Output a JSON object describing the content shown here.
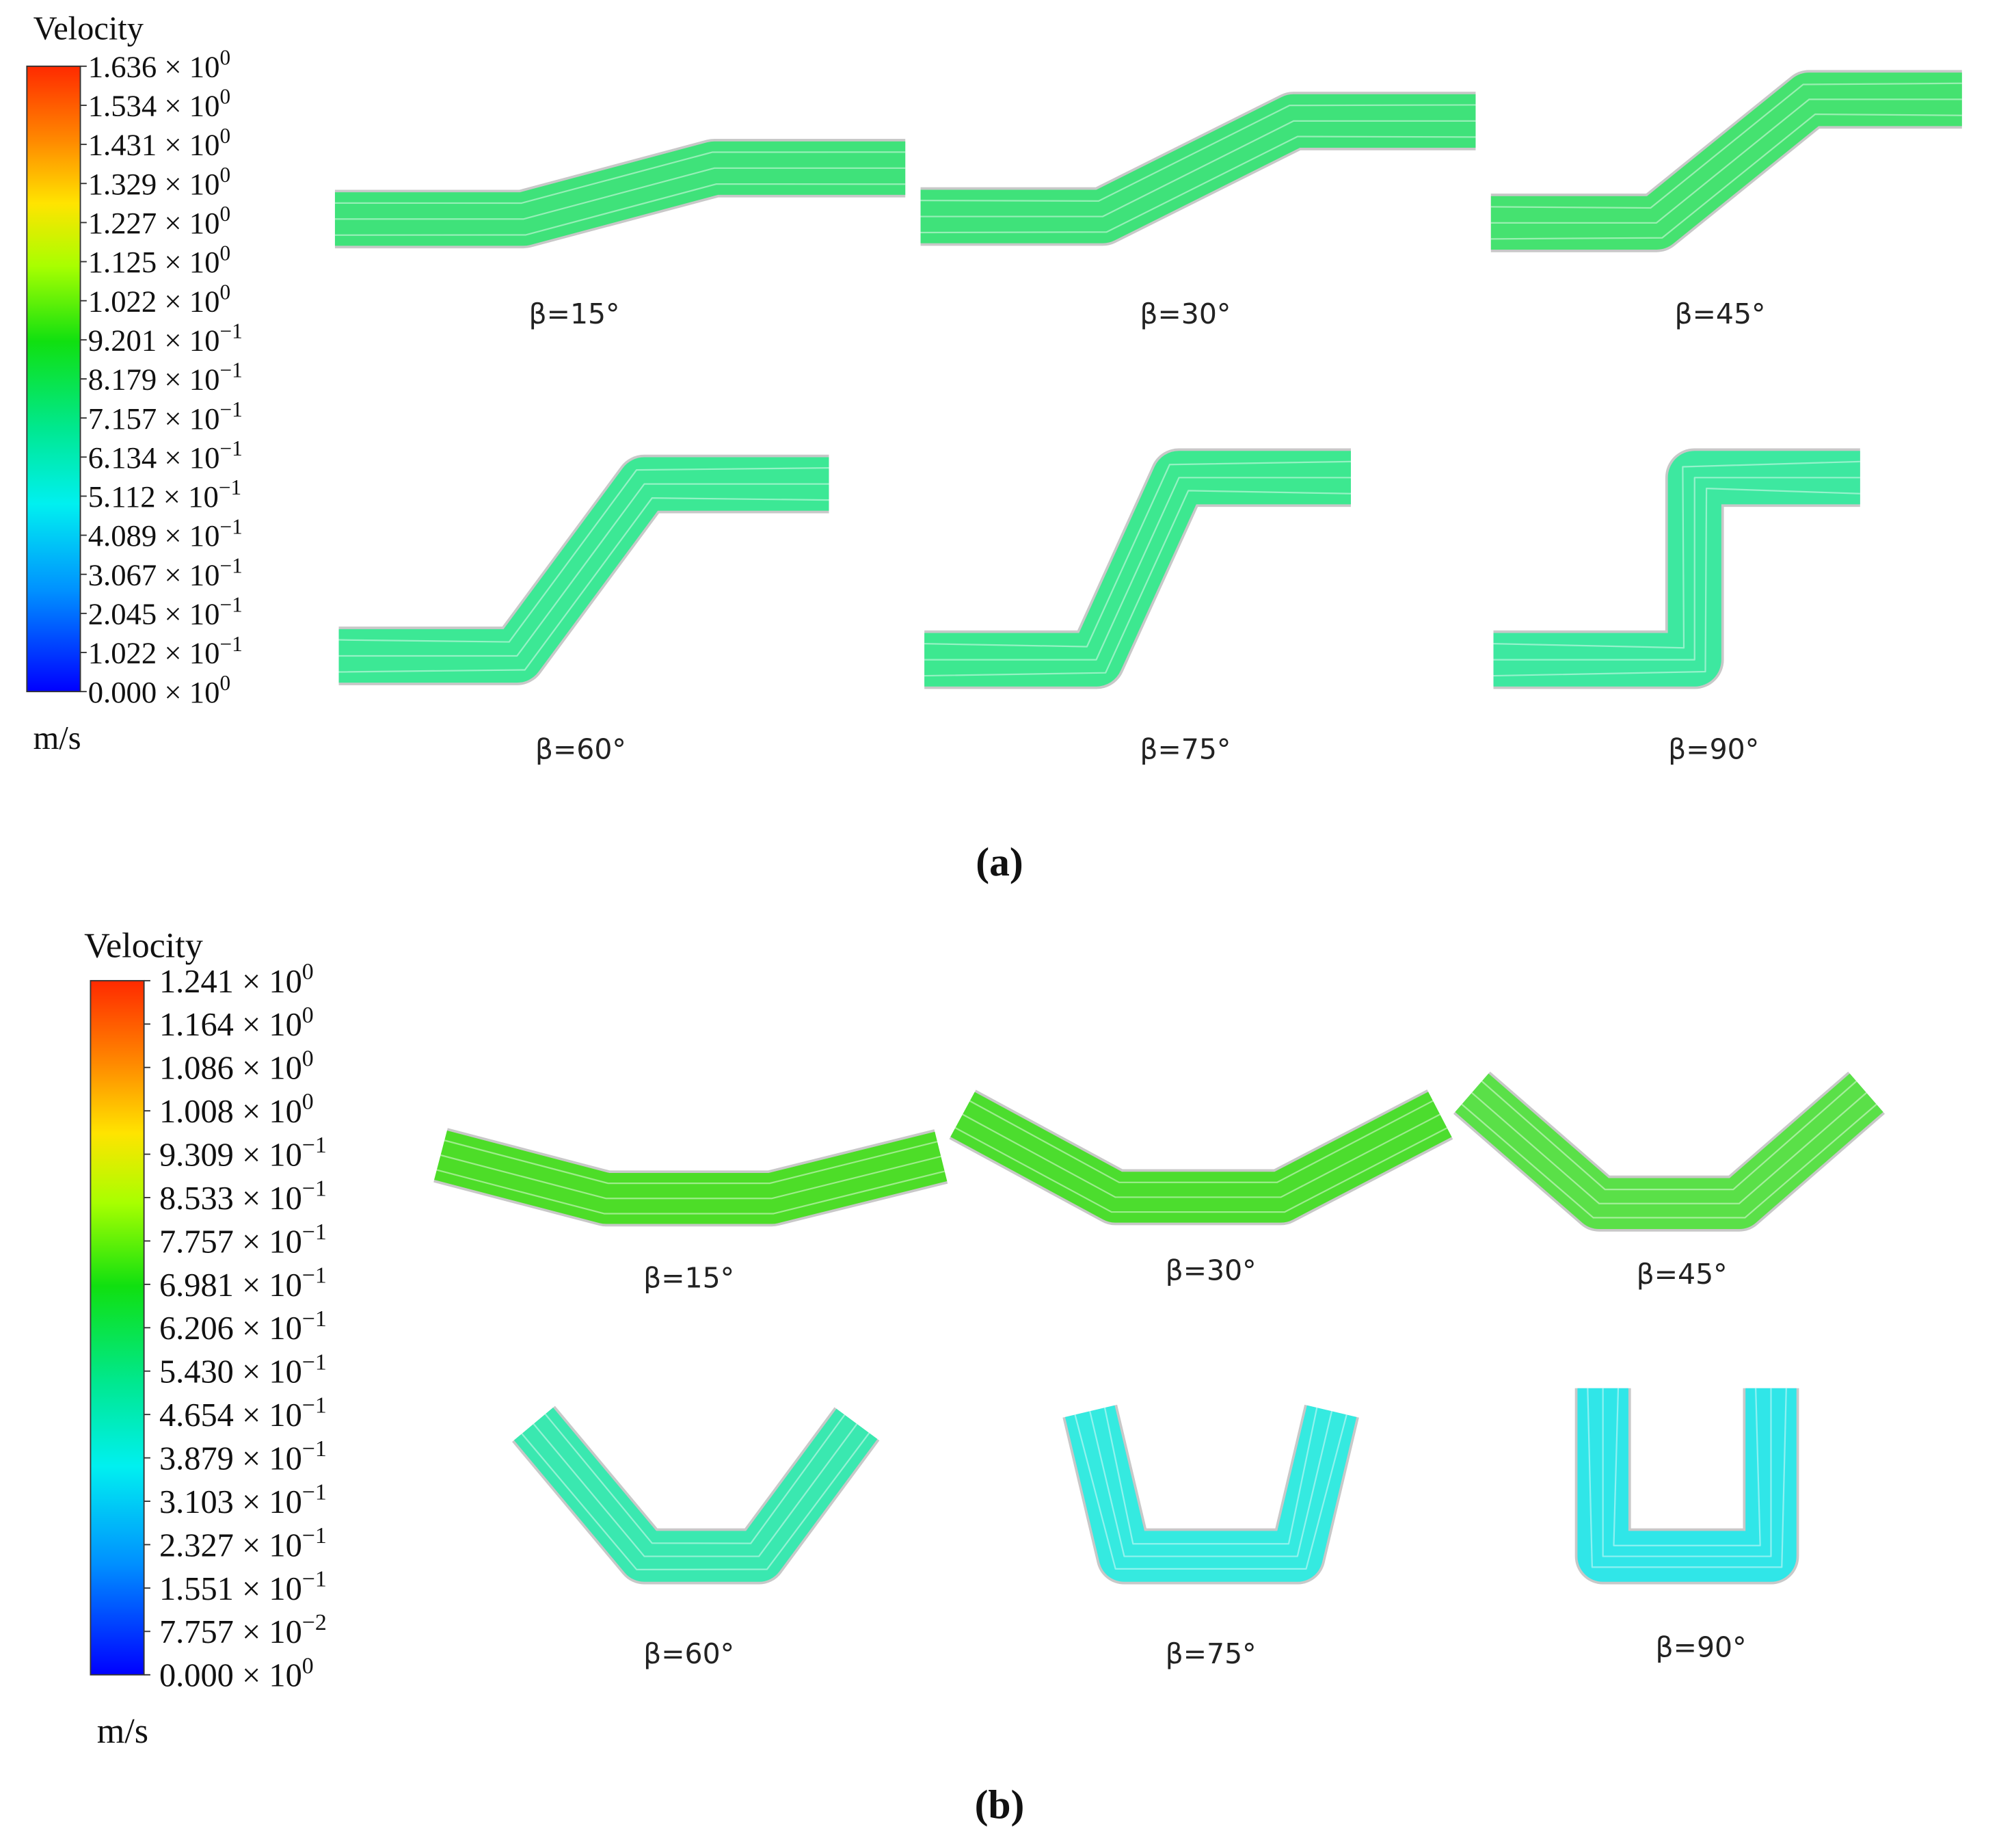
{
  "panels": [
    {
      "label": "(a)",
      "legend": {
        "title": "Velocity",
        "unit": "m/s",
        "ticks": [
          {
            "base": "1.636 × 10",
            "exp": "0"
          },
          {
            "base": "1.534 × 10",
            "exp": "0"
          },
          {
            "base": "1.431 × 10",
            "exp": "0"
          },
          {
            "base": "1.329 × 10",
            "exp": "0"
          },
          {
            "base": "1.227 × 10",
            "exp": "0"
          },
          {
            "base": "1.125 × 10",
            "exp": "0"
          },
          {
            "base": "1.022 × 10",
            "exp": "0"
          },
          {
            "base": "9.201 × 10",
            "exp": "−1"
          },
          {
            "base": "8.179 × 10",
            "exp": "−1"
          },
          {
            "base": "7.157 × 10",
            "exp": "−1"
          },
          {
            "base": "6.134 × 10",
            "exp": "−1"
          },
          {
            "base": "5.112 × 10",
            "exp": "−1"
          },
          {
            "base": "4.089 × 10",
            "exp": "−1"
          },
          {
            "base": "3.067 × 10",
            "exp": "−1"
          },
          {
            "base": "2.045 × 10",
            "exp": "−1"
          },
          {
            "base": "1.022 × 10",
            "exp": "−1"
          },
          {
            "base": "0.000 × 10",
            "exp": "0"
          }
        ]
      },
      "captions": [
        "β=15°",
        "β=30°",
        "β=45°",
        "β=60°",
        "β=75°",
        "β=90°"
      ]
    },
    {
      "label": "(b)",
      "legend": {
        "title": "Velocity",
        "unit": "m/s",
        "ticks": [
          {
            "base": "1.241 × 10",
            "exp": "0"
          },
          {
            "base": "1.164 × 10",
            "exp": "0"
          },
          {
            "base": "1.086 × 10",
            "exp": "0"
          },
          {
            "base": "1.008 × 10",
            "exp": "0"
          },
          {
            "base": "9.309 × 10",
            "exp": "−1"
          },
          {
            "base": "8.533 × 10",
            "exp": "−1"
          },
          {
            "base": "7.757 × 10",
            "exp": "−1"
          },
          {
            "base": "6.981 × 10",
            "exp": "−1"
          },
          {
            "base": "6.206 × 10",
            "exp": "−1"
          },
          {
            "base": "5.430 × 10",
            "exp": "−1"
          },
          {
            "base": "4.654 × 10",
            "exp": "−1"
          },
          {
            "base": "3.879 × 10",
            "exp": "−1"
          },
          {
            "base": "3.103 × 10",
            "exp": "−1"
          },
          {
            "base": "2.327 × 10",
            "exp": "−1"
          },
          {
            "base": "1.551 × 10",
            "exp": "−1"
          },
          {
            "base": "7.757 × 10",
            "exp": "−2"
          },
          {
            "base": "0.000 × 10",
            "exp": "0"
          }
        ]
      },
      "captions": [
        "β=15°",
        "β=30°",
        "β=45°",
        "β=60°",
        "β=75°",
        "β=90°"
      ]
    }
  ]
}
